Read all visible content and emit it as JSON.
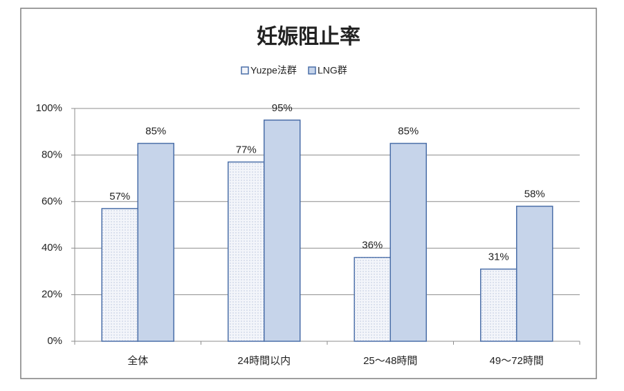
{
  "chart_data": {
    "type": "bar",
    "title": "妊娠阻止率",
    "categories": [
      "全体",
      "24時間以内",
      "25〜48時間",
      "49〜72時間"
    ],
    "series": [
      {
        "name": "Yuzpe法群",
        "color": "#f3f5fa",
        "values": [
          57,
          77,
          36,
          31
        ],
        "value_labels": [
          "57%",
          "77%",
          "36%",
          "31%"
        ]
      },
      {
        "name": "LNG群",
        "color": "#c6d4ea",
        "values": [
          85,
          95,
          85,
          58
        ],
        "value_labels": [
          "85%",
          "95%",
          "85%",
          "58%"
        ]
      }
    ],
    "ylim": [
      0,
      100
    ],
    "yticks": [
      {
        "value": 0,
        "label": "0%"
      },
      {
        "value": 20,
        "label": "20%"
      },
      {
        "value": 40,
        "label": "40%"
      },
      {
        "value": 60,
        "label": "60%"
      },
      {
        "value": 80,
        "label": "80%"
      },
      {
        "value": 100,
        "label": "100%"
      }
    ],
    "grid": true,
    "legend": "top"
  }
}
